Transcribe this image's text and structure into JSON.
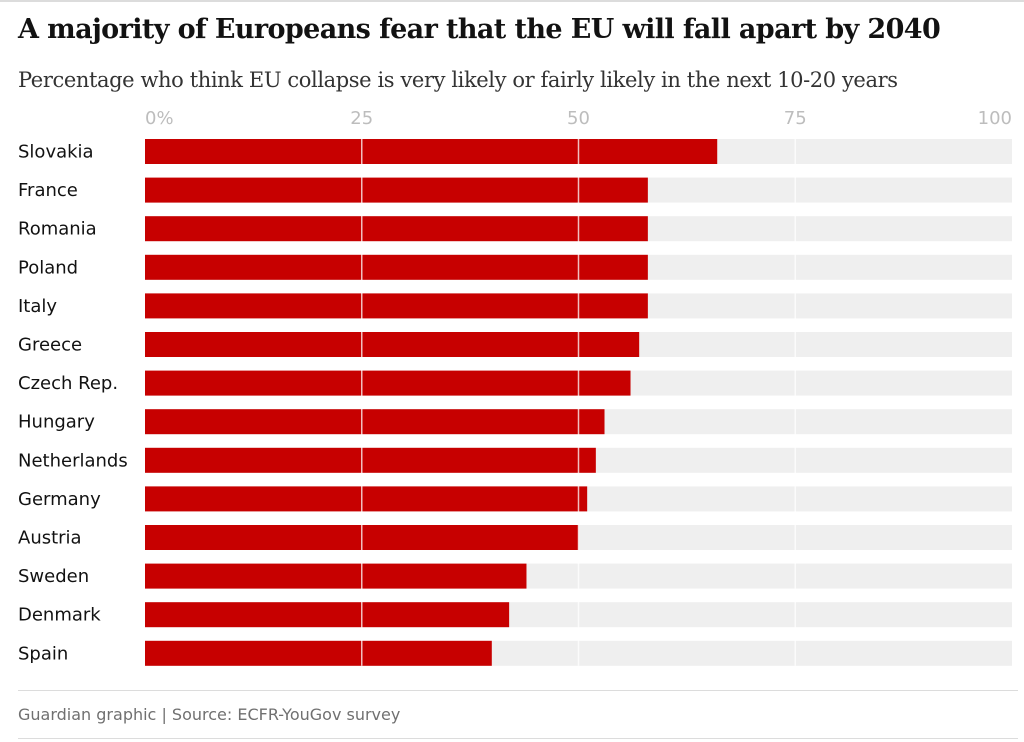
{
  "chart_data": {
    "type": "bar",
    "orientation": "horizontal",
    "title": "A majority of Europeans fear that the EU will fall apart by 2040",
    "subtitle": "Percentage who think EU collapse is very likely or fairly likely in the next 10-20 years",
    "xlim": [
      0,
      100
    ],
    "ticks": [
      "0%",
      "25",
      "50",
      "75",
      "100"
    ],
    "tick_values": [
      0,
      25,
      50,
      75,
      100
    ],
    "categories": [
      "Slovakia",
      "France",
      "Romania",
      "Poland",
      "Italy",
      "Greece",
      "Czech Rep.",
      "Hungary",
      "Netherlands",
      "Germany",
      "Austria",
      "Sweden",
      "Denmark",
      "Spain"
    ],
    "values": [
      66,
      58,
      58,
      58,
      58,
      57,
      56,
      53,
      52,
      51,
      50,
      44,
      42,
      40
    ],
    "grid": true,
    "bar_color": "#c70000",
    "track_color": "#efefef",
    "source": "Guardian graphic | Source: ECFR-YouGov survey"
  }
}
